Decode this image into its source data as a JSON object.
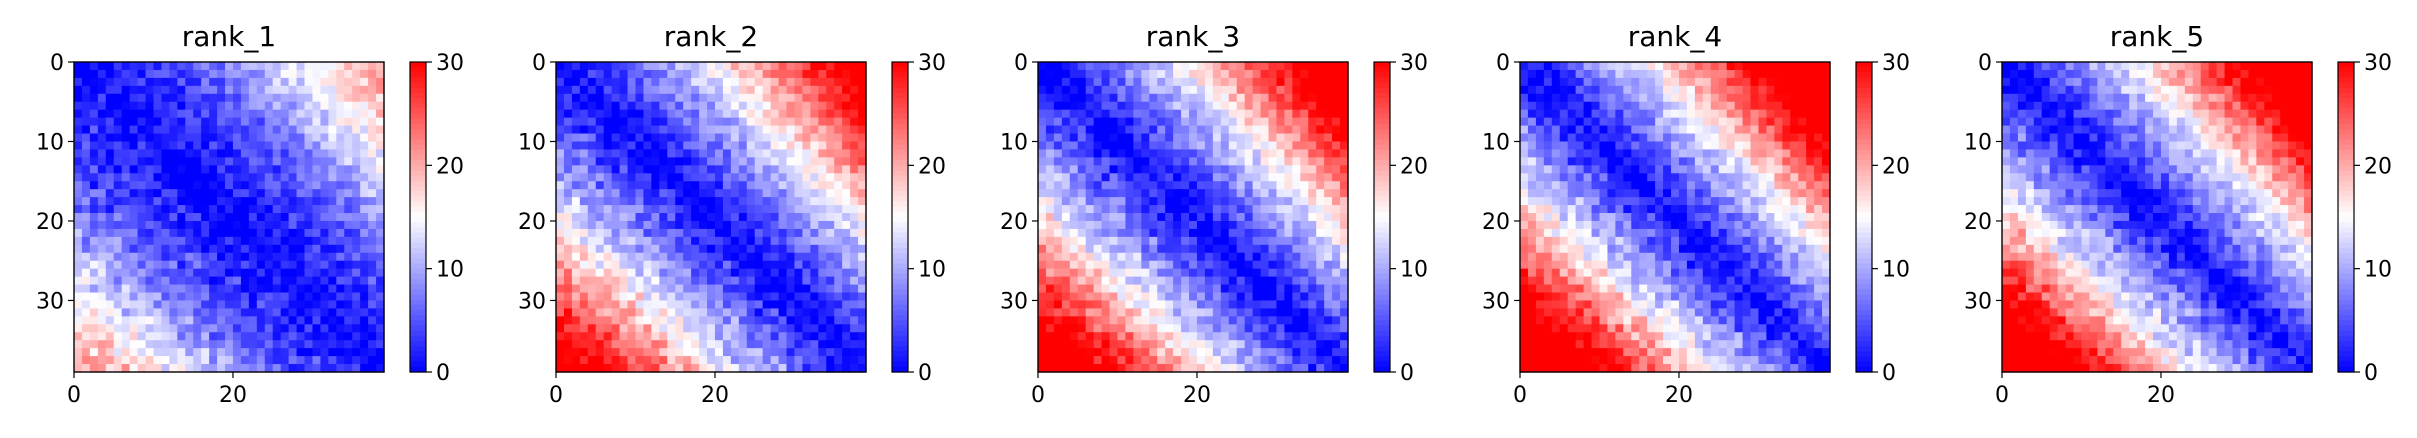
{
  "chart_data": [
    {
      "type": "heatmap",
      "title": "rank_1",
      "n": 39,
      "xticks": [
        "0",
        "20"
      ],
      "yticks": [
        "0",
        "10",
        "20",
        "30"
      ],
      "cbar_ticks": [
        "0",
        "10",
        "20",
        "30"
      ],
      "vmin": 0,
      "vmax": 30,
      "colormap": "bwr",
      "pattern": {
        "diag_slope": 0.22,
        "corner_boost": 5,
        "noise": 3,
        "seed": 11
      }
    },
    {
      "type": "heatmap",
      "title": "rank_2",
      "n": 39,
      "xticks": [
        "0",
        "20"
      ],
      "yticks": [
        "0",
        "10",
        "20",
        "30"
      ],
      "cbar_ticks": [
        "0",
        "10",
        "20",
        "30"
      ],
      "vmin": 0,
      "vmax": 30,
      "colormap": "bwr",
      "pattern": {
        "diag_slope": 0.55,
        "corner_boost": 6,
        "noise": 3,
        "seed": 23
      }
    },
    {
      "type": "heatmap",
      "title": "rank_3",
      "n": 39,
      "xticks": [
        "0",
        "20"
      ],
      "yticks": [
        "0",
        "10",
        "20",
        "30"
      ],
      "cbar_ticks": [
        "0",
        "10",
        "20",
        "30"
      ],
      "vmin": 0,
      "vmax": 30,
      "colormap": "bwr",
      "pattern": {
        "diag_slope": 0.62,
        "corner_boost": 7,
        "noise": 3,
        "seed": 37
      }
    },
    {
      "type": "heatmap",
      "title": "rank_4",
      "n": 39,
      "xticks": [
        "0",
        "20"
      ],
      "yticks": [
        "0",
        "10",
        "20",
        "30"
      ],
      "cbar_ticks": [
        "0",
        "10",
        "20",
        "30"
      ],
      "vmin": 0,
      "vmax": 30,
      "colormap": "bwr",
      "pattern": {
        "diag_slope": 0.7,
        "corner_boost": 8,
        "noise": 3,
        "seed": 41
      }
    },
    {
      "type": "heatmap",
      "title": "rank_5",
      "n": 39,
      "xticks": [
        "0",
        "20"
      ],
      "yticks": [
        "0",
        "10",
        "20",
        "30"
      ],
      "cbar_ticks": [
        "0",
        "10",
        "20",
        "30"
      ],
      "vmin": 0,
      "vmax": 30,
      "colormap": "bwr",
      "pattern": {
        "diag_slope": 0.68,
        "corner_boost": 8,
        "noise": 3,
        "seed": 53
      }
    }
  ]
}
